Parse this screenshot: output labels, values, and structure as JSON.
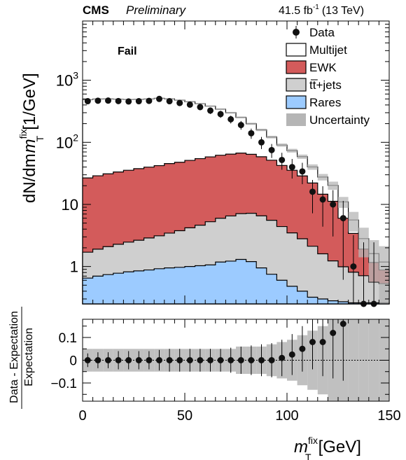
{
  "header": {
    "experiment": "CMS",
    "status": "Preliminary",
    "lumi": "41.5 fb",
    "lumi_sup": "-1",
    "energy": "(13 TeV)"
  },
  "category_label": "Fail",
  "colors": {
    "ewk": "#d35b5b",
    "ttbar": "#cfcfcf",
    "rares": "#9ccbff",
    "uncertainty": "#b5b5b5",
    "data": "#111111"
  },
  "chart_data": [
    {
      "type": "area",
      "title": "",
      "xlabel_main": "m",
      "xlabel_sup": "fix",
      "xlabel_sub": "T",
      "xlabel_unit": "[GeV]",
      "ylabel_pre": "dN/dm",
      "ylabel_sup": "fix",
      "ylabel_sub": "T",
      "ylabel_unit": "[1/GeV]",
      "yscale": "log",
      "xlim": [
        0,
        150
      ],
      "ylim": [
        0.25,
        9000
      ],
      "yticks": [
        {
          "value": 1,
          "base": "1",
          "exp": ""
        },
        {
          "value": 10,
          "base": "10",
          "exp": ""
        },
        {
          "value": 100,
          "base": "10",
          "exp": "2"
        },
        {
          "value": 1000,
          "base": "10",
          "exp": "3"
        }
      ],
      "legend_position": "top-right",
      "legend": [
        {
          "label": "Data",
          "style": "marker"
        },
        {
          "label": "Multijet",
          "style": "box-white"
        },
        {
          "label": "EWK",
          "style": "box-ewk"
        },
        {
          "label": "tt̅+jets",
          "style": "box-ttbar"
        },
        {
          "label": "Rares",
          "style": "box-rares"
        },
        {
          "label": "Uncertainty",
          "style": "box-unc"
        }
      ],
      "bin_edges": [
        0,
        5,
        10,
        15,
        20,
        25,
        30,
        35,
        40,
        45,
        50,
        55,
        60,
        65,
        70,
        75,
        80,
        85,
        90,
        95,
        100,
        105,
        110,
        115,
        120,
        125,
        130,
        135,
        140,
        145,
        150
      ],
      "series": [
        {
          "name": "Rares",
          "values": [
            0.65,
            0.7,
            0.74,
            0.78,
            0.82,
            0.85,
            0.88,
            0.92,
            0.95,
            0.97,
            1.0,
            1.03,
            1.06,
            1.18,
            1.22,
            1.3,
            1.2,
            0.95,
            0.75,
            0.6,
            0.48,
            0.4,
            0.32,
            0.3,
            0.28,
            0.27,
            0.26,
            0.26,
            0.26,
            0.26
          ]
        },
        {
          "name": "tt+jets",
          "values": [
            1.05,
            1.2,
            1.35,
            1.5,
            1.65,
            1.8,
            2.0,
            2.2,
            2.5,
            2.8,
            3.2,
            3.6,
            4.2,
            4.8,
            5.3,
            5.8,
            6.0,
            5.6,
            4.8,
            3.8,
            3.0,
            2.4,
            1.8,
            1.3,
            0.95,
            0.72,
            0.55,
            0.45,
            0.3,
            0.27
          ]
        },
        {
          "name": "EWK",
          "values": [
            25,
            27,
            29,
            31,
            33,
            35,
            37,
            39,
            42,
            44,
            47,
            50,
            53,
            56,
            58,
            60,
            57,
            52,
            46,
            38,
            32,
            26,
            20,
            13,
            10,
            5,
            2.6,
            1.2,
            0.6,
            0.35
          ]
        },
        {
          "name": "Multijet",
          "values": [
            460,
            470,
            470,
            462,
            455,
            455,
            460,
            470,
            455,
            430,
            400,
            365,
            325,
            280,
            235,
            185,
            135,
            100,
            70,
            48,
            38,
            30,
            18,
            13,
            9,
            5,
            2.2,
            0.9,
            0.45,
            0.3
          ]
        }
      ],
      "uncertainty_rel": [
        0.025,
        0.025,
        0.025,
        0.025,
        0.025,
        0.025,
        0.025,
        0.025,
        0.025,
        0.025,
        0.025,
        0.025,
        0.025,
        0.03,
        0.03,
        0.035,
        0.04,
        0.045,
        0.05,
        0.06,
        0.07,
        0.08,
        0.1,
        0.12,
        0.15,
        0.2,
        0.35,
        0.5,
        0.65,
        0.8
      ],
      "data": {
        "x": [
          2.5,
          7.5,
          12.5,
          17.5,
          22.5,
          27.5,
          32.5,
          37.5,
          42.5,
          47.5,
          52.5,
          57.5,
          62.5,
          67.5,
          72.5,
          77.5,
          82.5,
          87.5,
          92.5,
          97.5,
          102.5,
          107.5,
          112.5,
          117.5,
          122.5,
          127.5,
          132.5,
          137.5,
          142.5
        ],
        "y": [
          460,
          468,
          470,
          462,
          455,
          460,
          465,
          500,
          460,
          430,
          405,
          370,
          325,
          285,
          235,
          190,
          140,
          100,
          75,
          52,
          40,
          34,
          16,
          12,
          10,
          6,
          1,
          0.25,
          0.25
        ]
      }
    },
    {
      "type": "scatter",
      "title": "",
      "ylabel_num": "Data - Expectation",
      "ylabel_den": "Expectation",
      "xlim": [
        0,
        150
      ],
      "ylim": [
        -0.18,
        0.18
      ],
      "xticks": [
        0,
        50,
        100,
        150
      ],
      "yticks": [
        {
          "value": -0.1,
          "label": "−0.1"
        },
        {
          "value": 0,
          "label": "0"
        },
        {
          "value": 0.1,
          "label": "0.1"
        }
      ],
      "bin_edges": [
        0,
        5,
        10,
        15,
        20,
        25,
        30,
        35,
        40,
        45,
        50,
        55,
        60,
        65,
        70,
        75,
        80,
        85,
        90,
        95,
        100,
        105,
        110,
        115,
        120,
        125,
        130,
        135,
        140,
        145,
        150
      ],
      "band_half_width": [
        0.05,
        0.05,
        0.05,
        0.05,
        0.05,
        0.05,
        0.05,
        0.05,
        0.05,
        0.05,
        0.05,
        0.05,
        0.05,
        0.05,
        0.05,
        0.06,
        0.06,
        0.06,
        0.07,
        0.08,
        0.09,
        0.11,
        0.13,
        0.15,
        0.18,
        0.2,
        0.2,
        0.2,
        0.2,
        0.2
      ],
      "x": [
        2.5,
        7.5,
        12.5,
        17.5,
        22.5,
        27.5,
        32.5,
        37.5,
        42.5,
        47.5,
        52.5,
        57.5,
        62.5,
        67.5,
        72.5,
        77.5,
        82.5,
        87.5,
        92.5,
        97.5,
        102.5,
        107.5,
        112.5,
        117.5,
        122.5,
        127.5
      ],
      "y": [
        0,
        0,
        0,
        0,
        0,
        0,
        0,
        0,
        0,
        0,
        0,
        0,
        0,
        0,
        0,
        0,
        0,
        0,
        0,
        0.01,
        0.025,
        0.05,
        0.08,
        0.08,
        0.12,
        0.16
      ],
      "err": [
        0.03,
        0.035,
        0.035,
        0.04,
        0.04,
        0.04,
        0.04,
        0.045,
        0.05,
        0.05,
        0.05,
        0.05,
        0.05,
        0.05,
        0.055,
        0.06,
        0.065,
        0.07,
        0.075,
        0.08,
        0.09,
        0.1,
        0.12,
        0.15,
        0.2,
        0.25
      ]
    }
  ]
}
